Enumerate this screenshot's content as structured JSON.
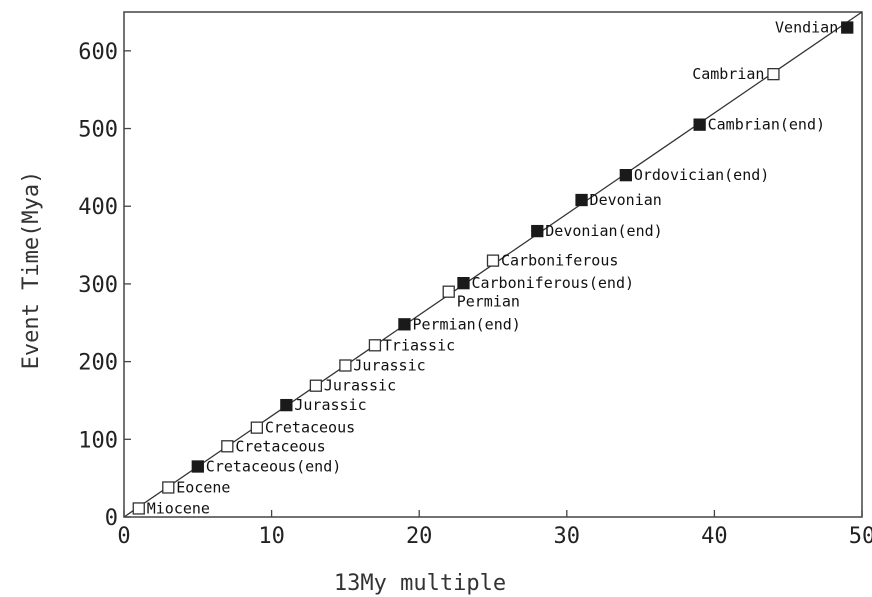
{
  "chart_data": {
    "type": "scatter",
    "title": "",
    "xlabel": "13My multiple",
    "ylabel": "Event Time(Mya)",
    "xlim": [
      0,
      50
    ],
    "ylim": [
      0,
      650
    ],
    "xticks": [
      0,
      10,
      20,
      30,
      40,
      50
    ],
    "yticks": [
      0,
      100,
      200,
      300,
      400,
      500,
      600
    ],
    "grid": false,
    "legend": "none",
    "fit_line": {
      "from": [
        0,
        0
      ],
      "to": [
        50,
        650
      ]
    },
    "colors": {
      "filled": "#1a1a1a",
      "open_stroke": "#333333",
      "line": "#333333"
    },
    "points": [
      {
        "x": 1,
        "y": 11,
        "label": "Miocene",
        "filled": false
      },
      {
        "x": 3,
        "y": 38,
        "label": "Eocene",
        "filled": false
      },
      {
        "x": 5,
        "y": 65,
        "label": "Cretaceous(end)",
        "filled": true
      },
      {
        "x": 7,
        "y": 91,
        "label": "Cretaceous",
        "filled": false
      },
      {
        "x": 9,
        "y": 115,
        "label": "Cretaceous",
        "filled": false
      },
      {
        "x": 11,
        "y": 144,
        "label": "Jurassic",
        "filled": true
      },
      {
        "x": 13,
        "y": 169,
        "label": "Jurassic",
        "filled": false
      },
      {
        "x": 15,
        "y": 195,
        "label": "Jurassic",
        "filled": false
      },
      {
        "x": 17,
        "y": 221,
        "label": "Triassic",
        "filled": false
      },
      {
        "x": 19,
        "y": 248,
        "label": "Permian(end)",
        "filled": true
      },
      {
        "x": 22,
        "y": 290,
        "label": "Permian",
        "filled": false
      },
      {
        "x": 23,
        "y": 301,
        "label": "Carboniferous(end)",
        "filled": true
      },
      {
        "x": 25,
        "y": 330,
        "label": "Carboniferous",
        "filled": false
      },
      {
        "x": 28,
        "y": 368,
        "label": "Devonian(end)",
        "filled": true
      },
      {
        "x": 31,
        "y": 408,
        "label": "Devonian",
        "filled": true
      },
      {
        "x": 34,
        "y": 440,
        "label": "Ordovician(end)",
        "filled": true
      },
      {
        "x": 39,
        "y": 505,
        "label": "Cambrian(end)",
        "filled": true
      },
      {
        "x": 44,
        "y": 570,
        "label": "Cambrian",
        "filled": false
      },
      {
        "x": 49,
        "y": 630,
        "label": "Vendian",
        "filled": true
      }
    ]
  }
}
